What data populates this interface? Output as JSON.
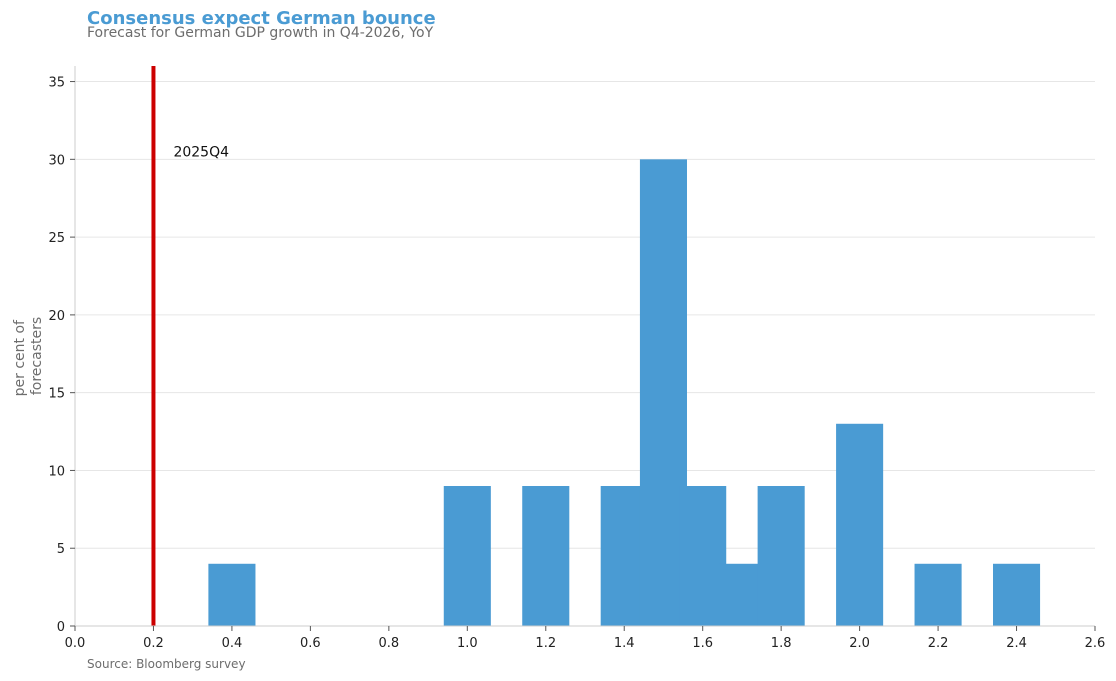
{
  "chart_data": {
    "type": "bar",
    "title": "Consensus expect German bounce",
    "subtitle": "Forecast for German GDP growth in Q4-2026, YoY",
    "source": "Source: Bloomberg survey",
    "ylabel_lines": [
      "per cent of",
      "forecasters"
    ],
    "xlim": [
      0.0,
      2.6
    ],
    "ylim": [
      0,
      36
    ],
    "x_ticks": [
      0.0,
      0.2,
      0.4,
      0.6,
      0.8,
      1.0,
      1.2,
      1.4,
      1.6,
      1.8,
      2.0,
      2.2,
      2.4,
      2.6
    ],
    "x_tick_labels": [
      "0.0",
      "0.2",
      "0.4",
      "0.6",
      "0.8",
      "1.0",
      "1.2",
      "1.4",
      "1.6",
      "1.8",
      "2.0",
      "2.2",
      "2.4",
      "2.6"
    ],
    "y_ticks": [
      0,
      5,
      10,
      15,
      20,
      25,
      30,
      35
    ],
    "y_tick_labels": [
      "0",
      "5",
      "10",
      "15",
      "20",
      "25",
      "30",
      "35"
    ],
    "grid": "horizontal",
    "bar_width": 0.12,
    "bars": [
      {
        "x": 0.4,
        "value": 4
      },
      {
        "x": 1.0,
        "value": 9
      },
      {
        "x": 1.2,
        "value": 9
      },
      {
        "x": 1.4,
        "value": 9
      },
      {
        "x": 1.5,
        "value": 30
      },
      {
        "x": 1.6,
        "value": 9
      },
      {
        "x": 1.7,
        "value": 4
      },
      {
        "x": 1.8,
        "value": 9
      },
      {
        "x": 2.0,
        "value": 13
      },
      {
        "x": 2.2,
        "value": 4
      },
      {
        "x": 2.4,
        "value": 4
      }
    ],
    "reference_line": {
      "x": 0.2,
      "label": "2025Q4",
      "label_y": 30.5
    },
    "colors": {
      "bar": "#4a9bd3",
      "reference_line": "#cc0000",
      "title": "#4a9bd3",
      "grid": "#e6e6e6",
      "axis": "#cccccc"
    }
  }
}
